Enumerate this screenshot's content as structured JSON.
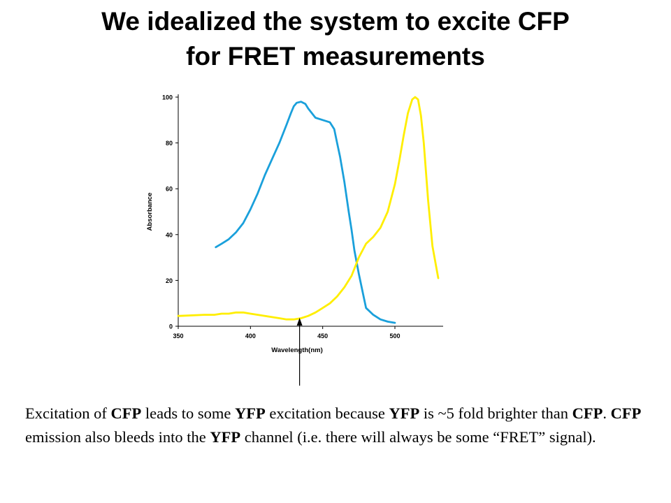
{
  "slide": {
    "title_line1": "We idealized the system to excite CFP",
    "title_line2": "for FRET measurements"
  },
  "caption": {
    "seg1": "Excitation of ",
    "cfp1": "CFP",
    "seg2": " leads to some ",
    "yfp1": "YFP",
    "seg3": " excitation because ",
    "yfp2": "YFP",
    "seg4": " is ~5 fold brighter than ",
    "cfp2": "CFP",
    "seg5": ".  ",
    "cfp3": "CFP",
    "seg6": " emission also bleeds into the ",
    "yfp3": "YFP",
    "seg7": " channel (i.e. there will always be some “FRET” signal)."
  },
  "chart_data": {
    "type": "line",
    "title": "",
    "xlabel": "Wavelength(nm)",
    "ylabel": "Absorbance",
    "xlim": [
      350,
      535
    ],
    "ylim": [
      0,
      100
    ],
    "xticks": [
      350,
      400,
      450,
      500
    ],
    "yticks": [
      0,
      20,
      40,
      60,
      80,
      100
    ],
    "grid": false,
    "legend": "none",
    "annotation": {
      "type": "arrow",
      "x": 434,
      "description": "arrow pointing up to excitation wavelength"
    },
    "series": [
      {
        "color": "#1aa0db",
        "x": [
          376,
          380,
          385,
          390,
          395,
          400,
          405,
          410,
          415,
          420,
          425,
          428,
          430,
          432,
          435,
          438,
          440,
          445,
          450,
          455,
          458,
          460,
          462,
          465,
          468,
          470,
          472,
          475,
          478,
          480,
          485,
          490,
          495,
          500
        ],
        "y": [
          34.5,
          36,
          38,
          41,
          45,
          51,
          58,
          66,
          73,
          80,
          88,
          93,
          96,
          97.5,
          98,
          97,
          95,
          91,
          90,
          89,
          86,
          80,
          74,
          63,
          50,
          42,
          33,
          23,
          14,
          8,
          5,
          3,
          2,
          1.5
        ]
      },
      {
        "color": "#ffee00",
        "x": [
          350,
          351,
          368,
          375,
          380,
          385,
          390,
          395,
          400,
          405,
          410,
          415,
          420,
          425,
          430,
          435,
          440,
          445,
          450,
          455,
          460,
          465,
          470,
          475,
          480,
          485,
          490,
          495,
          500,
          503,
          506,
          509,
          512,
          514,
          516,
          518,
          520,
          523,
          526,
          530
        ],
        "y": [
          4.5,
          4.5,
          5,
          5,
          5.5,
          5.5,
          6,
          6,
          5.5,
          5,
          4.5,
          4,
          3.5,
          3,
          3,
          3.5,
          4.5,
          6,
          8,
          10,
          13,
          17,
          22,
          30,
          36,
          39,
          43,
          50,
          62,
          72,
          83,
          93,
          99,
          100,
          99,
          92,
          80,
          55,
          35,
          21
        ]
      }
    ]
  }
}
